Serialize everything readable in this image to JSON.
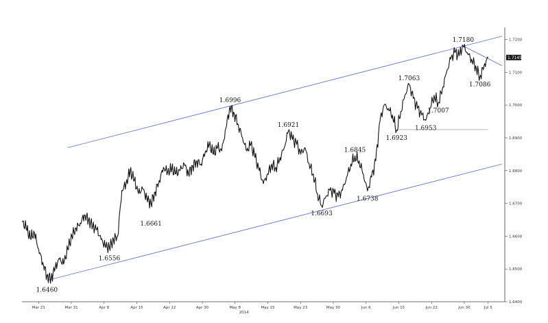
{
  "chart_data": {
    "type": "line",
    "title": "",
    "xlabel": "2014",
    "ylabel": "",
    "ylim": [
      1.64,
      1.722
    ],
    "x_ticks": [
      "Mar 21",
      "Mar 31",
      "Apr 8",
      "Apr 15",
      "Apr 22",
      "Apr 30",
      "May 8",
      "May 15",
      "May 23",
      "May 30",
      "Jun 6",
      "Jun 15",
      "Jun 22",
      "Jun 30",
      "Jul 5"
    ],
    "y_ticks": [
      {
        "value": 1.64,
        "label": "1.6400"
      },
      {
        "value": 1.65,
        "label": "1.6500"
      },
      {
        "value": 1.66,
        "label": "1.6600"
      },
      {
        "value": 1.67,
        "label": "1.6700"
      },
      {
        "value": 1.68,
        "label": "1.6800"
      },
      {
        "value": 1.69,
        "label": "1.6900"
      },
      {
        "value": 1.7,
        "label": "1.7000"
      },
      {
        "value": 1.71,
        "label": "1.7100"
      },
      {
        "value": 1.72,
        "label": "1.7200"
      }
    ],
    "last_price": {
      "value": 1.7145,
      "label": "1.7145"
    },
    "series": [
      {
        "values": [
          [
            0,
            1.6645
          ],
          [
            1.5,
            1.6625
          ],
          [
            3,
            1.6595
          ],
          [
            4.5,
            1.661
          ],
          [
            6,
            1.656
          ],
          [
            7.5,
            1.652
          ],
          [
            9,
            1.648
          ],
          [
            10.5,
            1.647
          ],
          [
            12,
            1.6505
          ],
          [
            13.5,
            1.653
          ],
          [
            15,
            1.6515
          ],
          [
            16.5,
            1.656
          ],
          [
            18,
            1.66
          ],
          [
            19.5,
            1.6625
          ],
          [
            21,
            1.664
          ],
          [
            22.5,
            1.6665
          ],
          [
            24,
            1.665
          ],
          [
            25.5,
            1.663
          ],
          [
            27,
            1.662
          ],
          [
            28.5,
            1.659
          ],
          [
            30,
            1.657
          ],
          [
            31.5,
            1.6565
          ],
          [
            33,
            1.659
          ],
          [
            34.5,
            1.66
          ],
          [
            36,
            1.674
          ],
          [
            37.5,
            1.676
          ],
          [
            39,
            1.68
          ],
          [
            40.5,
            1.677
          ],
          [
            42,
            1.673
          ],
          [
            43.5,
            1.6745
          ],
          [
            45,
            1.6715
          ],
          [
            46.5,
            1.67
          ],
          [
            48,
            1.6735
          ],
          [
            49.5,
            1.677
          ],
          [
            51,
            1.681
          ],
          [
            52.5,
            1.6795
          ],
          [
            54,
            1.6805
          ],
          [
            55.5,
            1.679
          ],
          [
            57,
            1.68
          ],
          [
            58.5,
            1.682
          ],
          [
            60,
            1.679
          ],
          [
            61.5,
            1.6815
          ],
          [
            63,
            1.683
          ],
          [
            64.5,
            1.682
          ],
          [
            66,
            1.6855
          ],
          [
            67.5,
            1.688
          ],
          [
            69,
            1.685
          ],
          [
            70.5,
            1.687
          ],
          [
            72,
            1.686
          ],
          [
            73.5,
            1.693
          ],
          [
            75,
            1.6996
          ],
          [
            76.5,
            1.6975
          ],
          [
            78,
            1.694
          ],
          [
            79.5,
            1.69
          ],
          [
            81,
            1.686
          ],
          [
            82.5,
            1.688
          ],
          [
            84,
            1.684
          ],
          [
            85.5,
            1.68
          ],
          [
            87,
            1.676
          ],
          [
            88.5,
            1.679
          ],
          [
            90,
            1.682
          ],
          [
            91.5,
            1.681
          ],
          [
            93,
            1.684
          ],
          [
            94.5,
            1.687
          ],
          [
            96,
            1.6921
          ],
          [
            97.5,
            1.6895
          ],
          [
            99,
            1.688
          ],
          [
            100.5,
            1.685
          ],
          [
            102,
            1.687
          ],
          [
            103.5,
            1.682
          ],
          [
            105,
            1.679
          ],
          [
            106.5,
            1.673
          ],
          [
            108,
            1.6693
          ],
          [
            109.5,
            1.672
          ],
          [
            111,
            1.674
          ],
          [
            112.5,
            1.673
          ],
          [
            114,
            1.672
          ],
          [
            115.5,
            1.674
          ],
          [
            117,
            1.678
          ],
          [
            118.5,
            1.682
          ],
          [
            120,
            1.6845
          ],
          [
            121.5,
            1.683
          ],
          [
            123,
            1.679
          ],
          [
            124.5,
            1.6738
          ],
          [
            126,
            1.678
          ],
          [
            127.5,
            1.683
          ],
          [
            129,
            1.695
          ],
          [
            130.5,
            1.7
          ],
          [
            132,
            1.699
          ],
          [
            133.5,
            1.697
          ],
          [
            135,
            1.6923
          ],
          [
            136.5,
            1.698
          ],
          [
            138,
            1.703
          ],
          [
            139.5,
            1.7063
          ],
          [
            141,
            1.702
          ],
          [
            142.5,
            1.699
          ],
          [
            144,
            1.697
          ],
          [
            145.5,
            1.6953
          ],
          [
            147,
            1.699
          ],
          [
            148.5,
            1.703
          ],
          [
            150,
            1.7007
          ],
          [
            151.5,
            1.705
          ],
          [
            153,
            1.71
          ],
          [
            154.5,
            1.714
          ],
          [
            156,
            1.716
          ],
          [
            157.5,
            1.715
          ],
          [
            159,
            1.718
          ],
          [
            160.5,
            1.716
          ],
          [
            162,
            1.714
          ],
          [
            163.5,
            1.712
          ],
          [
            165,
            1.7086
          ],
          [
            166.5,
            1.712
          ],
          [
            168,
            1.7145
          ]
        ]
      }
    ],
    "annotations": [
      {
        "x": 9,
        "y": 1.646,
        "label": "1.6460",
        "pos": "below"
      },
      {
        "x": 31.5,
        "y": 1.6556,
        "label": "1.6556",
        "pos": "below"
      },
      {
        "x": 46.5,
        "y": 1.6661,
        "label": "1.6661",
        "pos": "below"
      },
      {
        "x": 75,
        "y": 1.6996,
        "label": "1.6996",
        "pos": "above"
      },
      {
        "x": 96,
        "y": 1.6921,
        "label": "1.6921",
        "pos": "above"
      },
      {
        "x": 108,
        "y": 1.6693,
        "label": "1.6693",
        "pos": "below"
      },
      {
        "x": 120,
        "y": 1.6845,
        "label": "1.6845",
        "pos": "above"
      },
      {
        "x": 124.5,
        "y": 1.6738,
        "label": "1.6738",
        "pos": "below"
      },
      {
        "x": 135,
        "y": 1.6923,
        "label": "1.6923",
        "pos": "below"
      },
      {
        "x": 139.5,
        "y": 1.7063,
        "label": "1.7063",
        "pos": "above"
      },
      {
        "x": 145.5,
        "y": 1.6953,
        "label": "1.6953",
        "pos": "below"
      },
      {
        "x": 150,
        "y": 1.7007,
        "label": "1.7007",
        "pos": "below"
      },
      {
        "x": 159,
        "y": 1.718,
        "label": "1.7180",
        "pos": "above"
      },
      {
        "x": 165,
        "y": 1.7086,
        "label": "1.7086",
        "pos": "below"
      }
    ],
    "trendlines": [
      {
        "x1": 16.5,
        "y1": 1.687,
        "x2": 173,
        "y2": 1.721
      },
      {
        "x1": 9,
        "y1": 1.6465,
        "x2": 173,
        "y2": 1.682
      },
      {
        "x1": 135,
        "y1": 1.6925,
        "x2": 168,
        "y2": 1.6925
      },
      {
        "x1": 159,
        "y1": 1.718,
        "x2": 173,
        "y2": 1.712
      }
    ],
    "grid": false,
    "legend": "none"
  },
  "colors": {
    "price": "#111111",
    "trend": "#3355cc",
    "support": "#9a9a9a",
    "axis": "#444444",
    "last_box": "#1a1a1a"
  }
}
